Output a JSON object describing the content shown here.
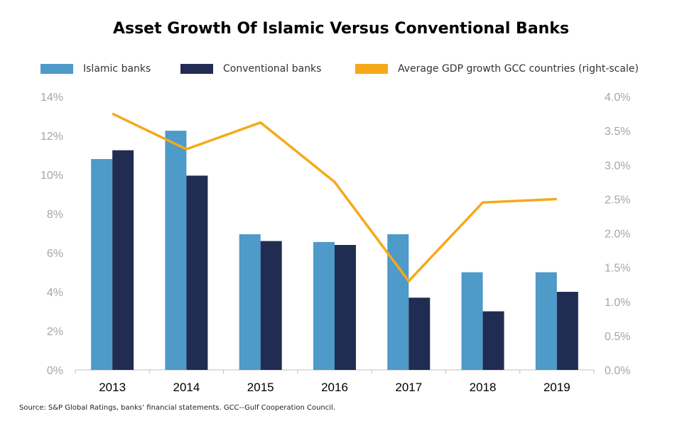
{
  "chart_data": {
    "type": "bar",
    "title": "Asset Growth Of Islamic Versus Conventional Banks",
    "categories": [
      "2013",
      "2014",
      "2015",
      "2016",
      "2017",
      "2018",
      "2019"
    ],
    "series": [
      {
        "name": "Islamic banks",
        "type": "bar",
        "axis": "left",
        "color": "#4e9ac9",
        "values": [
          10.8,
          12.25,
          6.95,
          6.55,
          6.95,
          5.0,
          5.0
        ]
      },
      {
        "name": "Conventional banks",
        "type": "bar",
        "axis": "left",
        "color": "#212c52",
        "values": [
          11.25,
          9.95,
          6.6,
          6.4,
          3.7,
          3.0,
          4.0
        ]
      },
      {
        "name": "Average GDP growth GCC countries (right-scale)",
        "type": "line",
        "axis": "right",
        "color": "#f5a91a",
        "values": [
          3.75,
          3.23,
          3.62,
          2.75,
          1.3,
          2.45,
          2.5
        ]
      }
    ],
    "left_axis": {
      "ylim": [
        0,
        14
      ],
      "ticks": [
        "0%",
        "2%",
        "4%",
        "6%",
        "8%",
        "10%",
        "12%",
        "14%"
      ]
    },
    "right_axis": {
      "ylim": [
        0,
        4.0
      ],
      "ticks": [
        "0.0%",
        "0.5%",
        "1.0%",
        "1.5%",
        "2.0%",
        "2.5%",
        "3.0%",
        "3.5%",
        "4.0%"
      ]
    },
    "grid": false,
    "legend_position": "top"
  },
  "source": "Source:  S&P Global Ratings, banks’ financial statements. GCC--Gulf Cooperation Council."
}
